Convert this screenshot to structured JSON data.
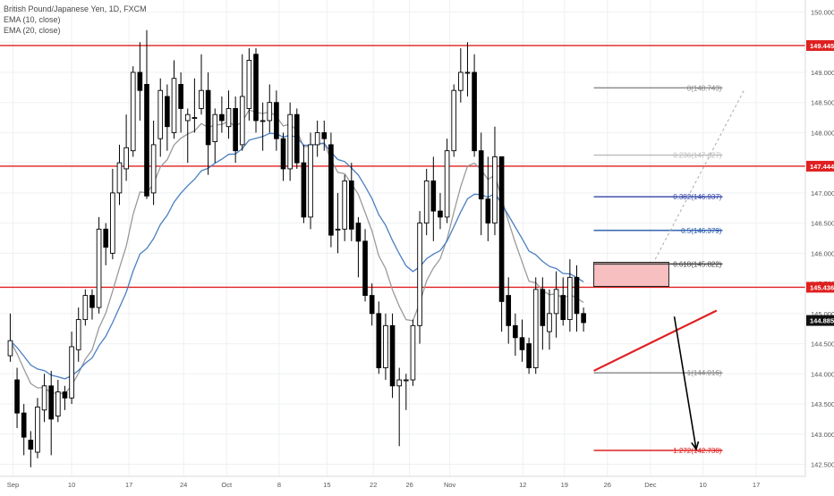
{
  "legend": {
    "symbol": "British Pound/Japanese Yen, 1D, FXCM",
    "ema10": "EMA (10, close)",
    "ema20": "EMA (20, close)"
  },
  "chart_data": {
    "type": "candlestick",
    "title": "British Pound/Japanese Yen, 1D, FXCM",
    "ylim": [
      142.3,
      150.2
    ],
    "y_ticks": [
      "150.000",
      "149.500",
      "149.000",
      "148.500",
      "148.000",
      "147.500",
      "147.000",
      "146.500",
      "146.000",
      "145.500",
      "145.000",
      "144.500",
      "144.000",
      "143.500",
      "143.000",
      "142.500"
    ],
    "x_ticks": [
      "Sep",
      "10",
      "17",
      "24",
      "Oct",
      "8",
      "15",
      "22",
      "26",
      "Nov",
      "12",
      "19",
      "26",
      "Dec",
      "10",
      "17"
    ],
    "x_tick_index": [
      0.4,
      9,
      17.4,
      25.4,
      31.7,
      39.4,
      46.4,
      53.2,
      58.5,
      64.4,
      75.1,
      81.2,
      87.5,
      93.8,
      101.5,
      109.3
    ],
    "x_domain": [
      -1.5,
      116.5
    ],
    "candles": [
      [
        144.3,
        144.55,
        145.0,
        144.2
      ],
      [
        143.9,
        143.35,
        144.1,
        143.1
      ],
      [
        143.35,
        142.95,
        143.5,
        142.65
      ],
      [
        142.9,
        142.75,
        143.05,
        142.45
      ],
      [
        142.7,
        143.45,
        143.6,
        142.6
      ],
      [
        143.4,
        143.8,
        144.0,
        143.2
      ],
      [
        143.8,
        143.25,
        144.05,
        142.65
      ],
      [
        143.3,
        143.7,
        143.9,
        143.2
      ],
      [
        143.7,
        143.6,
        143.8,
        143.4
      ],
      [
        143.6,
        144.45,
        144.7,
        143.5
      ],
      [
        144.4,
        144.9,
        145.1,
        144.2
      ],
      [
        144.9,
        145.3,
        145.4,
        144.8
      ],
      [
        145.3,
        145.1,
        145.4,
        144.9
      ],
      [
        145.1,
        146.4,
        146.6,
        145.0
      ],
      [
        146.4,
        146.1,
        146.5,
        145.8
      ],
      [
        146.0,
        147.0,
        147.4,
        145.9
      ],
      [
        147.0,
        147.5,
        147.8,
        146.8
      ],
      [
        147.4,
        147.75,
        148.3,
        147.2
      ],
      [
        147.7,
        149.0,
        149.1,
        147.6
      ],
      [
        149.0,
        148.7,
        149.5,
        148.2
      ],
      [
        148.8,
        146.95,
        149.7,
        146.9
      ],
      [
        147.0,
        147.8,
        148.2,
        146.8
      ],
      [
        147.9,
        148.7,
        148.9,
        147.6
      ],
      [
        148.6,
        148.1,
        148.8,
        147.7
      ],
      [
        148.0,
        148.9,
        149.2,
        147.9
      ],
      [
        148.8,
        148.4,
        149.0,
        148.0
      ],
      [
        148.2,
        148.3,
        148.4,
        147.5
      ],
      [
        148.25,
        148.25,
        148.9,
        148.0
      ],
      [
        148.4,
        148.7,
        149.3,
        148.3
      ],
      [
        148.7,
        147.8,
        149.0,
        147.3
      ],
      [
        147.85,
        148.3,
        148.4,
        147.5
      ],
      [
        148.3,
        148.2,
        148.6,
        148.0
      ],
      [
        148.1,
        148.4,
        148.7,
        147.9
      ],
      [
        148.4,
        147.7,
        148.6,
        147.5
      ],
      [
        147.8,
        148.6,
        149.3,
        147.7
      ],
      [
        148.4,
        149.2,
        149.4,
        148.2
      ],
      [
        149.3,
        148.2,
        149.4,
        148.0
      ],
      [
        148.2,
        148.2,
        148.5,
        147.7
      ],
      [
        148.2,
        148.5,
        148.8,
        148.0
      ],
      [
        148.5,
        147.9,
        148.7,
        147.7
      ],
      [
        147.9,
        147.4,
        148.0,
        147.2
      ],
      [
        147.4,
        148.3,
        148.5,
        147.2
      ],
      [
        148.3,
        147.5,
        148.4,
        147.4
      ],
      [
        147.5,
        146.6,
        147.8,
        146.5
      ],
      [
        146.6,
        147.8,
        148.0,
        146.4
      ],
      [
        147.8,
        148.0,
        148.2,
        147.6
      ],
      [
        148.0,
        147.9,
        148.2,
        147.7
      ],
      [
        147.8,
        146.3,
        148.0,
        146.1
      ],
      [
        146.4,
        146.4,
        147.0,
        146.0
      ],
      [
        146.4,
        147.2,
        147.3,
        146.2
      ],
      [
        147.2,
        146.4,
        147.5,
        146.2
      ],
      [
        146.5,
        146.2,
        146.6,
        145.6
      ],
      [
        146.2,
        145.3,
        146.4,
        145.2
      ],
      [
        145.3,
        145.0,
        145.5,
        144.8
      ],
      [
        145.0,
        144.1,
        145.2,
        144.0
      ],
      [
        144.1,
        144.8,
        145.0,
        143.9
      ],
      [
        144.8,
        143.8,
        145.0,
        143.6
      ],
      [
        143.8,
        143.9,
        144.1,
        142.8
      ],
      [
        143.9,
        143.9,
        144.0,
        143.4
      ],
      [
        143.9,
        144.8,
        144.9,
        143.8
      ],
      [
        144.8,
        146.5,
        146.7,
        144.5
      ],
      [
        146.5,
        147.2,
        147.4,
        146.3
      ],
      [
        147.2,
        146.7,
        147.6,
        146.2
      ],
      [
        146.7,
        146.6,
        147.0,
        146.4
      ],
      [
        146.6,
        147.7,
        147.9,
        146.5
      ],
      [
        147.7,
        148.7,
        148.8,
        147.6
      ],
      [
        148.7,
        149.0,
        149.4,
        148.5
      ],
      [
        149.0,
        149.0,
        149.5,
        148.6
      ],
      [
        149.0,
        147.7,
        149.3,
        147.6
      ],
      [
        147.7,
        146.9,
        148.0,
        146.3
      ],
      [
        146.9,
        146.5,
        147.6,
        146.2
      ],
      [
        146.5,
        147.6,
        148.1,
        146.3
      ],
      [
        147.6,
        145.2,
        147.6,
        144.7
      ],
      [
        145.3,
        144.8,
        145.6,
        144.5
      ],
      [
        144.8,
        144.6,
        145.0,
        144.3
      ],
      [
        144.6,
        144.4,
        144.9,
        144.2
      ],
      [
        144.5,
        144.1,
        144.6,
        144.0
      ],
      [
        144.1,
        145.4,
        145.6,
        144.0
      ],
      [
        145.4,
        144.8,
        145.6,
        144.4
      ],
      [
        144.7,
        145.0,
        145.4,
        144.4
      ],
      [
        145.0,
        145.4,
        145.7,
        144.6
      ],
      [
        145.3,
        144.9,
        145.6,
        144.8
      ],
      [
        144.9,
        145.6,
        145.9,
        144.7
      ],
      [
        145.6,
        145.0,
        145.8,
        144.7
      ],
      [
        145.0,
        144.85,
        145.1,
        144.7
      ]
    ],
    "ema10_label": "EMA (10, close)",
    "ema20_label": "EMA (20, close)",
    "support_resistance": [
      {
        "price": 149.445,
        "label": "149.445"
      },
      {
        "price": 147.444,
        "label": "147.444"
      },
      {
        "price": 145.436,
        "label": "145.436"
      }
    ],
    "current_price": {
      "price": 144.885,
      "label": "144.885"
    },
    "fibonacci": [
      {
        "ratio": "0",
        "price": 148.743,
        "label": "0(148.743)",
        "color": "#888888"
      },
      {
        "ratio": "0.236",
        "price": 147.627,
        "label": "0.236(147.627)",
        "color": "#bbbbbb"
      },
      {
        "ratio": "0.382",
        "price": 146.937,
        "label": "0.382(146.937)",
        "color": "#3344aa"
      },
      {
        "ratio": "0.5",
        "price": 146.379,
        "label": "0.5(146.379)",
        "color": "#2255aa"
      },
      {
        "ratio": "0.618",
        "price": 145.822,
        "label": "0.618(145.822)",
        "color": "#444444"
      },
      {
        "ratio": "1",
        "price": 144.016,
        "label": "1(144.016)",
        "color": "#888888"
      },
      {
        "ratio": "1.272",
        "price": 142.73,
        "label": "1.272(142.730)",
        "color": "#e02020"
      }
    ],
    "fib_range_index": [
      85.5,
      96.5
    ],
    "resistance_zone": {
      "from_index": 85.5,
      "to_index": 96.5,
      "top": 145.85,
      "bottom": 145.45,
      "color": "#f6b4b4"
    },
    "trendline": {
      "from": [
        85.5,
        144.05
      ],
      "to": [
        103.5,
        145.05
      ],
      "color": "#e02020"
    },
    "arrow": {
      "from": [
        97.3,
        144.95
      ],
      "to": [
        100.5,
        142.75
      ]
    },
    "dashed_projection": {
      "from": [
        94.5,
        145.9
      ],
      "to": [
        107.5,
        148.7
      ]
    },
    "colors": {
      "up": "#ffffff",
      "down": "#000000",
      "wick": "#000000",
      "ema10": "#9a9a9a",
      "ema20": "#4a7fc1",
      "hline": "#e02020",
      "price_tag_red": "#e02020",
      "price_tag_dark": "#111111"
    }
  }
}
